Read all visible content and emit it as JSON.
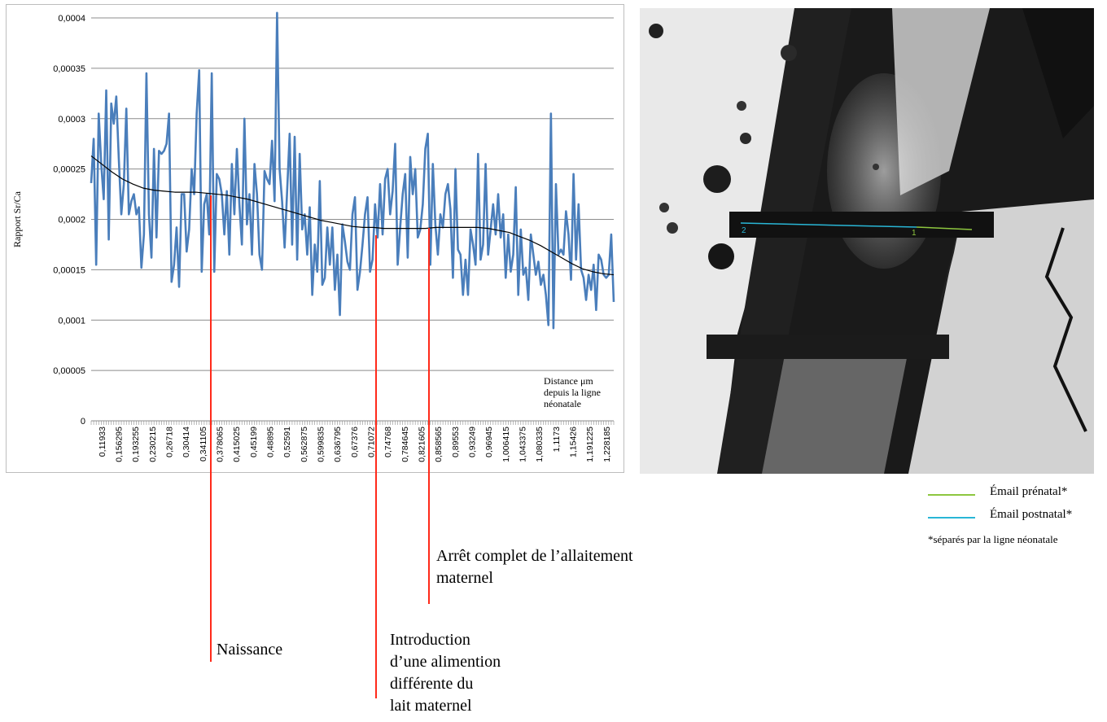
{
  "chart_data": {
    "type": "line",
    "ylabel": "Rapport Sr/Ca",
    "xlabel_lines": [
      "Distance μm",
      "depuis la ligne",
      "néonatale"
    ],
    "ylim": [
      0,
      0.0004
    ],
    "y_ticks": [
      "0",
      "0,00005",
      "0,0001",
      "0,00015",
      "0,0002",
      "0,00025",
      "0,0003",
      "0,00035",
      "0,0004"
    ],
    "x_tick_labels": [
      "0,11933",
      "0,156295",
      "0,193255",
      "0,230215",
      "0,26718",
      "0,30414",
      "0,341105",
      "0,378065",
      "0,415025",
      "0,45199",
      "0,48895",
      "0,52591",
      "0,562875",
      "0,599835",
      "0,636795",
      "0,67376",
      "0,71072",
      "0,74768",
      "0,784645",
      "0,821605",
      "0,858565",
      "0,89553",
      "0,93249",
      "0,96945",
      "1,006415",
      "1,043375",
      "1,080335",
      "1,1173",
      "1,15426",
      "1,191225",
      "1,228185"
    ],
    "grid": true,
    "series": [
      {
        "style": "raw",
        "color": "#4a7ebb",
        "values": [
          0.000236,
          0.00028,
          0.000155,
          0.000305,
          0.000255,
          0.00022,
          0.000328,
          0.00018,
          0.000315,
          0.000295,
          0.000322,
          0.00026,
          0.000205,
          0.000235,
          0.00031,
          0.000205,
          0.000218,
          0.000225,
          0.000205,
          0.000212,
          0.000152,
          0.000185,
          0.000345,
          0.000205,
          0.000162,
          0.00027,
          0.000182,
          0.000268,
          0.000265,
          0.000268,
          0.000275,
          0.000305,
          0.000138,
          0.000155,
          0.000192,
          0.000133,
          0.000225,
          0.000225,
          0.000168,
          0.00019,
          0.00025,
          0.000225,
          0.000305,
          0.000348,
          0.000148,
          0.000215,
          0.000225,
          0.000185,
          0.000345,
          0.000148,
          0.000245,
          0.00024,
          0.000225,
          0.000185,
          0.000228,
          0.000165,
          0.000255,
          0.000205,
          0.00027,
          0.000215,
          0.000175,
          0.0003,
          0.000195,
          0.000225,
          0.000165,
          0.000255,
          0.000225,
          0.000165,
          0.00015,
          0.000248,
          0.00024,
          0.000235,
          0.000278,
          0.000218,
          0.000405,
          0.00025,
          0.000218,
          0.000172,
          0.000228,
          0.000285,
          0.000175,
          0.000282,
          0.00016,
          0.000265,
          0.00019,
          0.000205,
          0.000165,
          0.000212,
          0.000125,
          0.000175,
          0.000148,
          0.000238,
          0.000135,
          0.000142,
          0.000192,
          0.000155,
          0.000192,
          0.00013,
          0.000165,
          0.000105,
          0.000195,
          0.000178,
          0.000158,
          0.00015,
          0.000205,
          0.000222,
          0.00013,
          0.000148,
          0.000175,
          0.000205,
          0.000222,
          0.000148,
          0.00016,
          0.000215,
          0.000182,
          0.000235,
          0.000185,
          0.00024,
          0.00025,
          0.000205,
          0.000228,
          0.000275,
          0.000155,
          0.000192,
          0.000225,
          0.000245,
          0.000162,
          0.000262,
          0.000225,
          0.00025,
          0.000182,
          0.00019,
          0.000215,
          0.00027,
          0.000285,
          0.000155,
          0.000255,
          0.000195,
          0.000165,
          0.000205,
          0.000192,
          0.000225,
          0.000235,
          0.00021,
          0.000142,
          0.00025,
          0.00017,
          0.000165,
          0.000125,
          0.00016,
          0.000125,
          0.00019,
          0.000175,
          0.000155,
          0.000265,
          0.00016,
          0.000175,
          0.000255,
          0.000165,
          0.00019,
          0.000215,
          0.000185,
          0.000225,
          0.000182,
          0.000205,
          0.000142,
          0.000185,
          0.000148,
          0.000165,
          0.000232,
          0.000125,
          0.00019,
          0.000145,
          0.000152,
          0.00012,
          0.000185,
          0.000165,
          0.000145,
          0.000158,
          0.000135,
          0.000145,
          0.000125,
          9.5e-05,
          0.000305,
          9.2e-05,
          0.000235,
          0.000165,
          0.00017,
          0.000165,
          0.000208,
          0.000185,
          0.00014,
          0.000245,
          0.00016,
          0.000215,
          0.00015,
          0.000142,
          0.00012,
          0.000145,
          0.00013,
          0.000155,
          0.00011,
          0.000165,
          0.00016,
          0.000145,
          0.000142,
          0.000145,
          0.000185,
          0.000118
        ]
      },
      {
        "style": "trend",
        "color": "#000000",
        "values": [
          0.000263,
          0.000255,
          0.000247,
          0.00024,
          0.000235,
          0.000231,
          0.000229,
          0.000228,
          0.000227,
          0.000227,
          0.000227,
          0.000226,
          0.000225,
          0.000224,
          0.000222,
          0.00022,
          0.000217,
          0.000214,
          0.000211,
          0.000208,
          0.000205,
          0.000202,
          0.000199,
          0.000197,
          0.000195,
          0.000193,
          0.000192,
          0.000192,
          0.000191,
          0.000191,
          0.000191,
          0.000191,
          0.000191,
          0.000192,
          0.000192,
          0.000192,
          0.000192,
          0.000192,
          0.000191,
          0.000189,
          0.000187,
          0.000183,
          0.000179,
          0.000174,
          0.000168,
          0.000162,
          0.000156,
          0.000151,
          0.000148,
          0.000146,
          0.000145
        ]
      }
    ]
  },
  "micrograph": {
    "labels": [
      "2",
      "1"
    ],
    "line_colors": {
      "prenatal": "#8dc63f",
      "postnatal": "#29b6d6"
    }
  },
  "legend": {
    "items": [
      {
        "label": "Émail prénatal*",
        "color": "#8dc63f"
      },
      {
        "label": "Émail postnatal*",
        "color": "#29b6d6"
      }
    ],
    "note": "*séparés par la ligne néonatale"
  },
  "annotations": {
    "naissance": "Naissance",
    "arret": [
      "Arrêt complet de l’allaitement",
      "maternel"
    ],
    "introduction": [
      "Introduction",
      "d’une alimention",
      "différente du",
      "lait maternel"
    ]
  }
}
